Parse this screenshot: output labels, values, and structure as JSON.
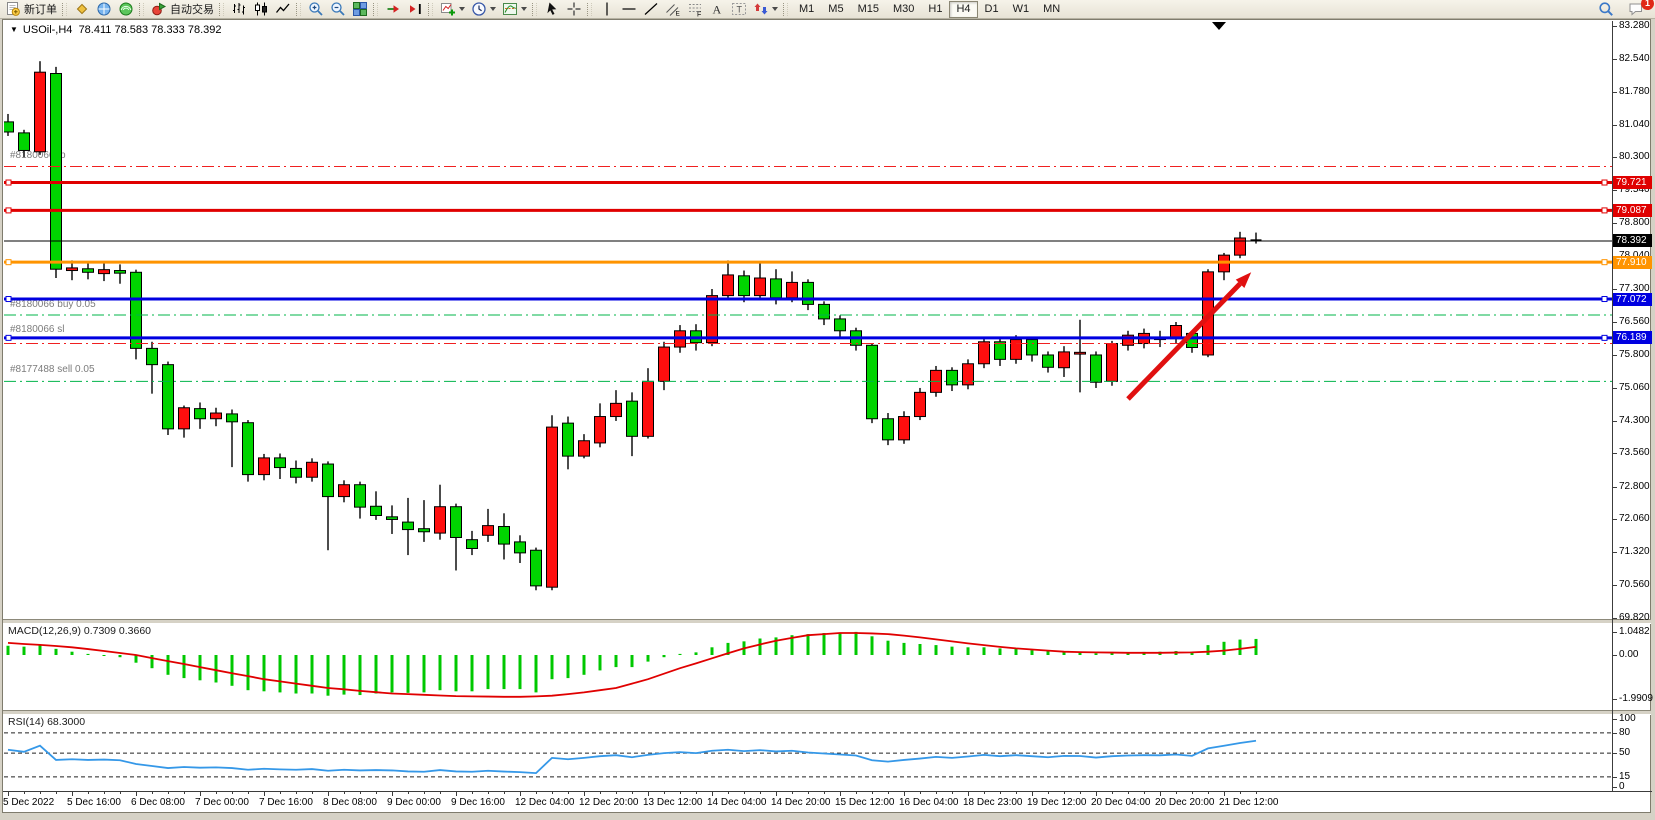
{
  "toolbar": {
    "groups": [
      {
        "items": [
          {
            "icon": "new-order",
            "label": "新订单",
            "name": "new-order-button"
          }
        ]
      },
      {
        "items": [
          {
            "icon": "market-watch",
            "name": "market-watch-button"
          },
          {
            "icon": "navigator",
            "name": "navigator-button"
          },
          {
            "icon": "data-center",
            "name": "data-center-button"
          }
        ]
      },
      {
        "items": [
          {
            "icon": "auto-trading",
            "label": "自动交易",
            "name": "auto-trading-button"
          }
        ]
      },
      {
        "items": [
          {
            "icon": "bar-chart",
            "name": "bar-chart-button"
          },
          {
            "icon": "candle-chart",
            "name": "candlestick-chart-button"
          },
          {
            "icon": "line-chart",
            "name": "line-chart-button"
          }
        ]
      },
      {
        "items": [
          {
            "icon": "zoom-in",
            "name": "zoom-in-button"
          },
          {
            "icon": "zoom-out",
            "name": "zoom-out-button"
          },
          {
            "icon": "tile-windows",
            "name": "tile-windows-button"
          }
        ]
      },
      {
        "items": [
          {
            "icon": "auto-scroll",
            "name": "auto-scroll-button"
          },
          {
            "icon": "chart-shift",
            "name": "chart-shift-button"
          }
        ]
      },
      {
        "items": [
          {
            "icon": "indicators",
            "dropdown": true,
            "name": "indicators-button"
          },
          {
            "icon": "clock",
            "dropdown": true,
            "name": "periods-button"
          },
          {
            "icon": "templates",
            "dropdown": true,
            "name": "templates-button"
          }
        ]
      },
      {
        "items": [
          {
            "icon": "cursor",
            "name": "cursor-button"
          },
          {
            "icon": "crosshair",
            "name": "crosshair-button"
          }
        ]
      },
      {
        "items": [
          {
            "icon": "vline",
            "name": "vertical-line-button"
          },
          {
            "icon": "hline",
            "name": "horizontal-line-button"
          },
          {
            "icon": "trendline",
            "name": "trend-line-button"
          },
          {
            "icon": "channel",
            "name": "equidistant-channel-button"
          },
          {
            "icon": "fibonacci",
            "name": "fibonacci-button"
          },
          {
            "icon": "text",
            "name": "text-button"
          },
          {
            "icon": "label",
            "name": "text-label-button"
          },
          {
            "icon": "arrows",
            "dropdown": true,
            "name": "arrows-button"
          }
        ]
      }
    ],
    "timeframes": [
      "M1",
      "M5",
      "M15",
      "M30",
      "H1",
      "H4",
      "D1",
      "W1",
      "MN"
    ],
    "active_timeframe": "H4",
    "right": [
      {
        "icon": "search",
        "name": "search-button"
      },
      {
        "icon": "chat",
        "badge": "1",
        "name": "notifications-button"
      }
    ]
  },
  "chart": {
    "title_symbol": "USOil-,H4",
    "title_ohlc": "78.411 78.583 78.333 78.392",
    "current_price": "78.392",
    "price_axis_ticks": [
      "83.280",
      "82.540",
      "81.780",
      "81.040",
      "80.300",
      "79.540",
      "78.800",
      "78.040",
      "77.300",
      "76.560",
      "75.800",
      "75.060",
      "74.300",
      "73.560",
      "72.800",
      "72.060",
      "71.320",
      "70.560",
      "69.820"
    ],
    "time_axis_labels": [
      "5 Dec 2022",
      "5 Dec 16:00",
      "6 Dec 08:00",
      "7 Dec 00:00",
      "7 Dec 16:00",
      "8 Dec 08:00",
      "9 Dec 00:00",
      "9 Dec 16:00",
      "12 Dec 04:00",
      "12 Dec 20:00",
      "13 Dec 12:00",
      "14 Dec 04:00",
      "14 Dec 20:00",
      "15 Dec 12:00",
      "16 Dec 04:00",
      "18 Dec 23:00",
      "19 Dec 12:00",
      "20 Dec 04:00",
      "20 Dec 20:00",
      "21 Dec 12:00"
    ],
    "hlines": [
      {
        "price": 80.085,
        "color": "#f02020",
        "style": "dashdot",
        "width": 1
      },
      {
        "price": 79.721,
        "color": "#e00000",
        "style": "solid",
        "width": 3,
        "badge": "#e00000",
        "handles": true
      },
      {
        "price": 79.087,
        "color": "#e00000",
        "style": "solid",
        "width": 3,
        "badge": "#e00000",
        "handles": true
      },
      {
        "price": 78.392,
        "color": "#000000",
        "style": "solid",
        "width": 1,
        "badge": "#000000"
      },
      {
        "price": 77.91,
        "color": "#ff9400",
        "style": "solid",
        "width": 3,
        "badge": "#ff9400",
        "handles": true
      },
      {
        "price": 77.072,
        "color": "#0000e0",
        "style": "solid",
        "width": 3,
        "badge": "#0000e0",
        "handles": true
      },
      {
        "price": 76.71,
        "color": "#00b44a",
        "style": "dashdot",
        "width": 1
      },
      {
        "price": 76.189,
        "color": "#0000e0",
        "style": "solid",
        "width": 3,
        "badge": "#0000e0",
        "handles": true
      },
      {
        "price": 76.06,
        "color": "#f02020",
        "style": "dashdot",
        "width": 1
      },
      {
        "price": 75.2,
        "color": "#00b44a",
        "style": "dashdot",
        "width": 1
      }
    ],
    "order_labels": [
      {
        "text": "#8180066 tp",
        "price": 80.33
      },
      {
        "text": "#8180066 buy 0.05",
        "price": 76.93
      },
      {
        "text": "#8180066 sl",
        "price": 76.36
      },
      {
        "text": "#8177488 sell 0.05",
        "price": 75.45
      }
    ],
    "colors": {
      "up": "#fe0e0e",
      "down": "#00d400",
      "wick": "#000000",
      "macd_hist": "#00c800",
      "macd_signal": "#e00000",
      "rsi_line": "#3598e8"
    }
  },
  "indicators": {
    "macd_label": "MACD(12,26,9) 0.7309 0.3660",
    "macd_scale": [
      "1.0482",
      "0.00",
      "-1.9909"
    ],
    "rsi_label": "RSI(14) 68.3000",
    "rsi_scale": [
      "100",
      "80",
      "50",
      "15",
      "0"
    ],
    "rsi_levels": [
      80,
      50,
      15
    ]
  },
  "chart_data": {
    "type": "candlestick",
    "symbol": "USOil-",
    "timeframe": "H4",
    "ohlc_current": {
      "open": 78.411,
      "high": 78.583,
      "low": 78.333,
      "close": 78.392
    },
    "price_range": [
      69.82,
      83.28
    ],
    "candles": [
      [
        81.1,
        81.28,
        80.78,
        80.87
      ],
      [
        80.85,
        80.92,
        80.3,
        80.45
      ],
      [
        80.42,
        82.48,
        80.35,
        82.23
      ],
      [
        82.2,
        82.35,
        77.55,
        77.75
      ],
      [
        77.72,
        77.95,
        77.5,
        77.78
      ],
      [
        77.76,
        77.92,
        77.52,
        77.68
      ],
      [
        77.65,
        77.9,
        77.48,
        77.74
      ],
      [
        77.72,
        77.86,
        77.42,
        77.66
      ],
      [
        77.68,
        77.74,
        75.7,
        75.95
      ],
      [
        75.95,
        76.1,
        74.92,
        75.58
      ],
      [
        75.58,
        75.65,
        73.98,
        74.12
      ],
      [
        74.12,
        74.65,
        73.92,
        74.6
      ],
      [
        74.58,
        74.72,
        74.12,
        74.35
      ],
      [
        74.35,
        74.6,
        74.18,
        74.48
      ],
      [
        74.46,
        74.56,
        73.25,
        74.28
      ],
      [
        74.26,
        74.32,
        72.92,
        73.08
      ],
      [
        73.08,
        73.55,
        72.95,
        73.46
      ],
      [
        73.46,
        73.56,
        72.98,
        73.24
      ],
      [
        73.22,
        73.4,
        72.88,
        73.02
      ],
      [
        73.02,
        73.45,
        72.92,
        73.36
      ],
      [
        73.32,
        73.38,
        71.36,
        72.58
      ],
      [
        72.58,
        72.95,
        72.45,
        72.85
      ],
      [
        72.85,
        72.92,
        72.08,
        72.34
      ],
      [
        72.36,
        72.7,
        72.05,
        72.15
      ],
      [
        72.12,
        72.38,
        71.73,
        72.06
      ],
      [
        72.0,
        72.55,
        71.25,
        71.83
      ],
      [
        71.85,
        72.5,
        71.55,
        71.78
      ],
      [
        71.75,
        72.85,
        71.6,
        72.35
      ],
      [
        72.35,
        72.42,
        70.9,
        71.65
      ],
      [
        71.6,
        71.8,
        71.25,
        71.4
      ],
      [
        71.7,
        72.3,
        71.55,
        71.92
      ],
      [
        71.9,
        72.2,
        71.15,
        71.5
      ],
      [
        71.55,
        71.7,
        71.07,
        71.3
      ],
      [
        71.36,
        71.42,
        70.45,
        70.55
      ],
      [
        70.52,
        74.43,
        70.45,
        74.16
      ],
      [
        74.25,
        74.4,
        73.2,
        73.5
      ],
      [
        73.5,
        74.0,
        73.45,
        73.85
      ],
      [
        73.8,
        74.7,
        73.7,
        74.4
      ],
      [
        74.4,
        75.0,
        74.3,
        74.7
      ],
      [
        74.75,
        74.95,
        73.5,
        73.95
      ],
      [
        73.95,
        75.5,
        73.9,
        75.2
      ],
      [
        75.2,
        76.1,
        75.0,
        75.98
      ],
      [
        75.98,
        76.48,
        75.85,
        76.35
      ],
      [
        76.35,
        76.5,
        75.9,
        76.08
      ],
      [
        76.08,
        77.3,
        76.0,
        77.15
      ],
      [
        77.15,
        77.95,
        77.05,
        77.62
      ],
      [
        77.6,
        77.72,
        77.0,
        77.15
      ],
      [
        77.15,
        77.88,
        77.05,
        77.55
      ],
      [
        77.53,
        77.75,
        76.95,
        77.1
      ],
      [
        77.1,
        77.7,
        77.0,
        77.45
      ],
      [
        77.45,
        77.52,
        76.82,
        76.95
      ],
      [
        76.95,
        77.02,
        76.48,
        76.62
      ],
      [
        76.62,
        76.7,
        76.22,
        76.35
      ],
      [
        76.35,
        76.42,
        75.9,
        76.02
      ],
      [
        76.02,
        76.06,
        74.25,
        74.35
      ],
      [
        74.35,
        74.48,
        73.75,
        73.87
      ],
      [
        73.87,
        74.52,
        73.78,
        74.4
      ],
      [
        74.4,
        75.05,
        74.32,
        74.95
      ],
      [
        74.95,
        75.55,
        74.85,
        75.45
      ],
      [
        75.45,
        75.52,
        74.98,
        75.12
      ],
      [
        75.12,
        75.7,
        75.02,
        75.6
      ],
      [
        75.6,
        76.2,
        75.5,
        76.1
      ],
      [
        76.1,
        76.18,
        75.55,
        75.7
      ],
      [
        75.7,
        76.25,
        75.6,
        76.15
      ],
      [
        76.15,
        76.22,
        75.65,
        75.8
      ],
      [
        75.8,
        75.88,
        75.4,
        75.52
      ],
      [
        75.51,
        76.0,
        75.3,
        75.87
      ],
      [
        75.82,
        76.6,
        74.95,
        75.86
      ],
      [
        75.8,
        75.88,
        75.05,
        75.18
      ],
      [
        75.2,
        76.12,
        75.1,
        76.06
      ],
      [
        76.02,
        76.35,
        75.9,
        76.25
      ],
      [
        76.06,
        76.4,
        75.95,
        76.29
      ],
      [
        76.15,
        76.35,
        75.98,
        76.19
      ],
      [
        76.17,
        76.55,
        76.05,
        76.47
      ],
      [
        76.29,
        76.35,
        75.85,
        75.97
      ],
      [
        75.8,
        77.75,
        75.75,
        77.69
      ],
      [
        77.69,
        78.12,
        77.5,
        78.07
      ],
      [
        78.07,
        78.6,
        78.0,
        78.46
      ],
      [
        78.411,
        78.583,
        78.333,
        78.392
      ]
    ],
    "macd": {
      "params": "12,26,9",
      "current_values": [
        0.7309,
        0.366
      ],
      "scale": {
        "max": 1.0482,
        "zero": 0.0,
        "min": -1.9909
      },
      "histogram": [
        0.42,
        0.38,
        0.45,
        0.28,
        0.15,
        0.05,
        -0.02,
        -0.1,
        -0.35,
        -0.6,
        -0.9,
        -1.05,
        -1.15,
        -1.25,
        -1.4,
        -1.6,
        -1.65,
        -1.7,
        -1.75,
        -1.75,
        -1.85,
        -1.8,
        -1.82,
        -1.75,
        -1.7,
        -1.72,
        -1.7,
        -1.6,
        -1.65,
        -1.65,
        -1.55,
        -1.55,
        -1.55,
        -1.7,
        -1.1,
        -1.05,
        -0.9,
        -0.7,
        -0.55,
        -0.55,
        -0.3,
        -0.1,
        0.05,
        0.12,
        0.35,
        0.55,
        0.62,
        0.75,
        0.8,
        0.9,
        0.95,
        1.0,
        1.02,
        1.05,
        0.85,
        0.65,
        0.55,
        0.5,
        0.45,
        0.38,
        0.35,
        0.35,
        0.3,
        0.28,
        0.22,
        0.18,
        0.15,
        0.12,
        0.08,
        0.1,
        0.12,
        0.14,
        0.15,
        0.18,
        0.15,
        0.45,
        0.6,
        0.7,
        0.73
      ],
      "signal": [
        0.55,
        0.5,
        0.46,
        0.41,
        0.35,
        0.27,
        0.18,
        0.09,
        0.0,
        -0.14,
        -0.28,
        -0.41,
        -0.55,
        -0.69,
        -0.83,
        -0.96,
        -1.1,
        -1.2,
        -1.3,
        -1.4,
        -1.5,
        -1.56,
        -1.63,
        -1.69,
        -1.75,
        -1.78,
        -1.81,
        -1.84,
        -1.87,
        -1.88,
        -1.89,
        -1.9,
        -1.9,
        -1.88,
        -1.85,
        -1.78,
        -1.7,
        -1.6,
        -1.5,
        -1.3,
        -1.1,
        -0.85,
        -0.6,
        -0.38,
        -0.15,
        0.08,
        0.3,
        0.48,
        0.65,
        0.78,
        0.9,
        0.95,
        1.0,
        1.0,
        0.98,
        0.95,
        0.88,
        0.8,
        0.71,
        0.62,
        0.53,
        0.45,
        0.37,
        0.3,
        0.25,
        0.2,
        0.15,
        0.13,
        0.12,
        0.11,
        0.1,
        0.1,
        0.1,
        0.11,
        0.12,
        0.15,
        0.2,
        0.28,
        0.37
      ]
    },
    "rsi": {
      "period": 14,
      "current_value": 68.3,
      "levels": [
        80,
        50,
        15
      ],
      "values": [
        55,
        52,
        61,
        40,
        41,
        40,
        40.5,
        39.5,
        34,
        31,
        28,
        29.5,
        28.5,
        29,
        28,
        25.5,
        27,
        26,
        25.5,
        26.5,
        24,
        25.5,
        24.5,
        25,
        24.5,
        23,
        22.5,
        25,
        23,
        22.5,
        24,
        22.8,
        22,
        20.5,
        43,
        41,
        43,
        45.5,
        47,
        44,
        47.5,
        50,
        51.5,
        50,
        53.5,
        55,
        53,
        54.5,
        52.5,
        53.5,
        51,
        49.5,
        48,
        46.5,
        39.5,
        37.5,
        40,
        42,
        44.5,
        43,
        45,
        47.5,
        45.5,
        47,
        45.5,
        44,
        46,
        45.8,
        43.5,
        45.5,
        46.5,
        47,
        46.8,
        48,
        46,
        57,
        61,
        65,
        68.3
      ]
    },
    "annotations": {
      "trend_arrow": {
        "from_bar": 70,
        "from_price": 74.8,
        "to_bar": 77.7,
        "to_price": 77.68,
        "color": "#e01010"
      },
      "top_marker_bar": 75.5
    }
  }
}
